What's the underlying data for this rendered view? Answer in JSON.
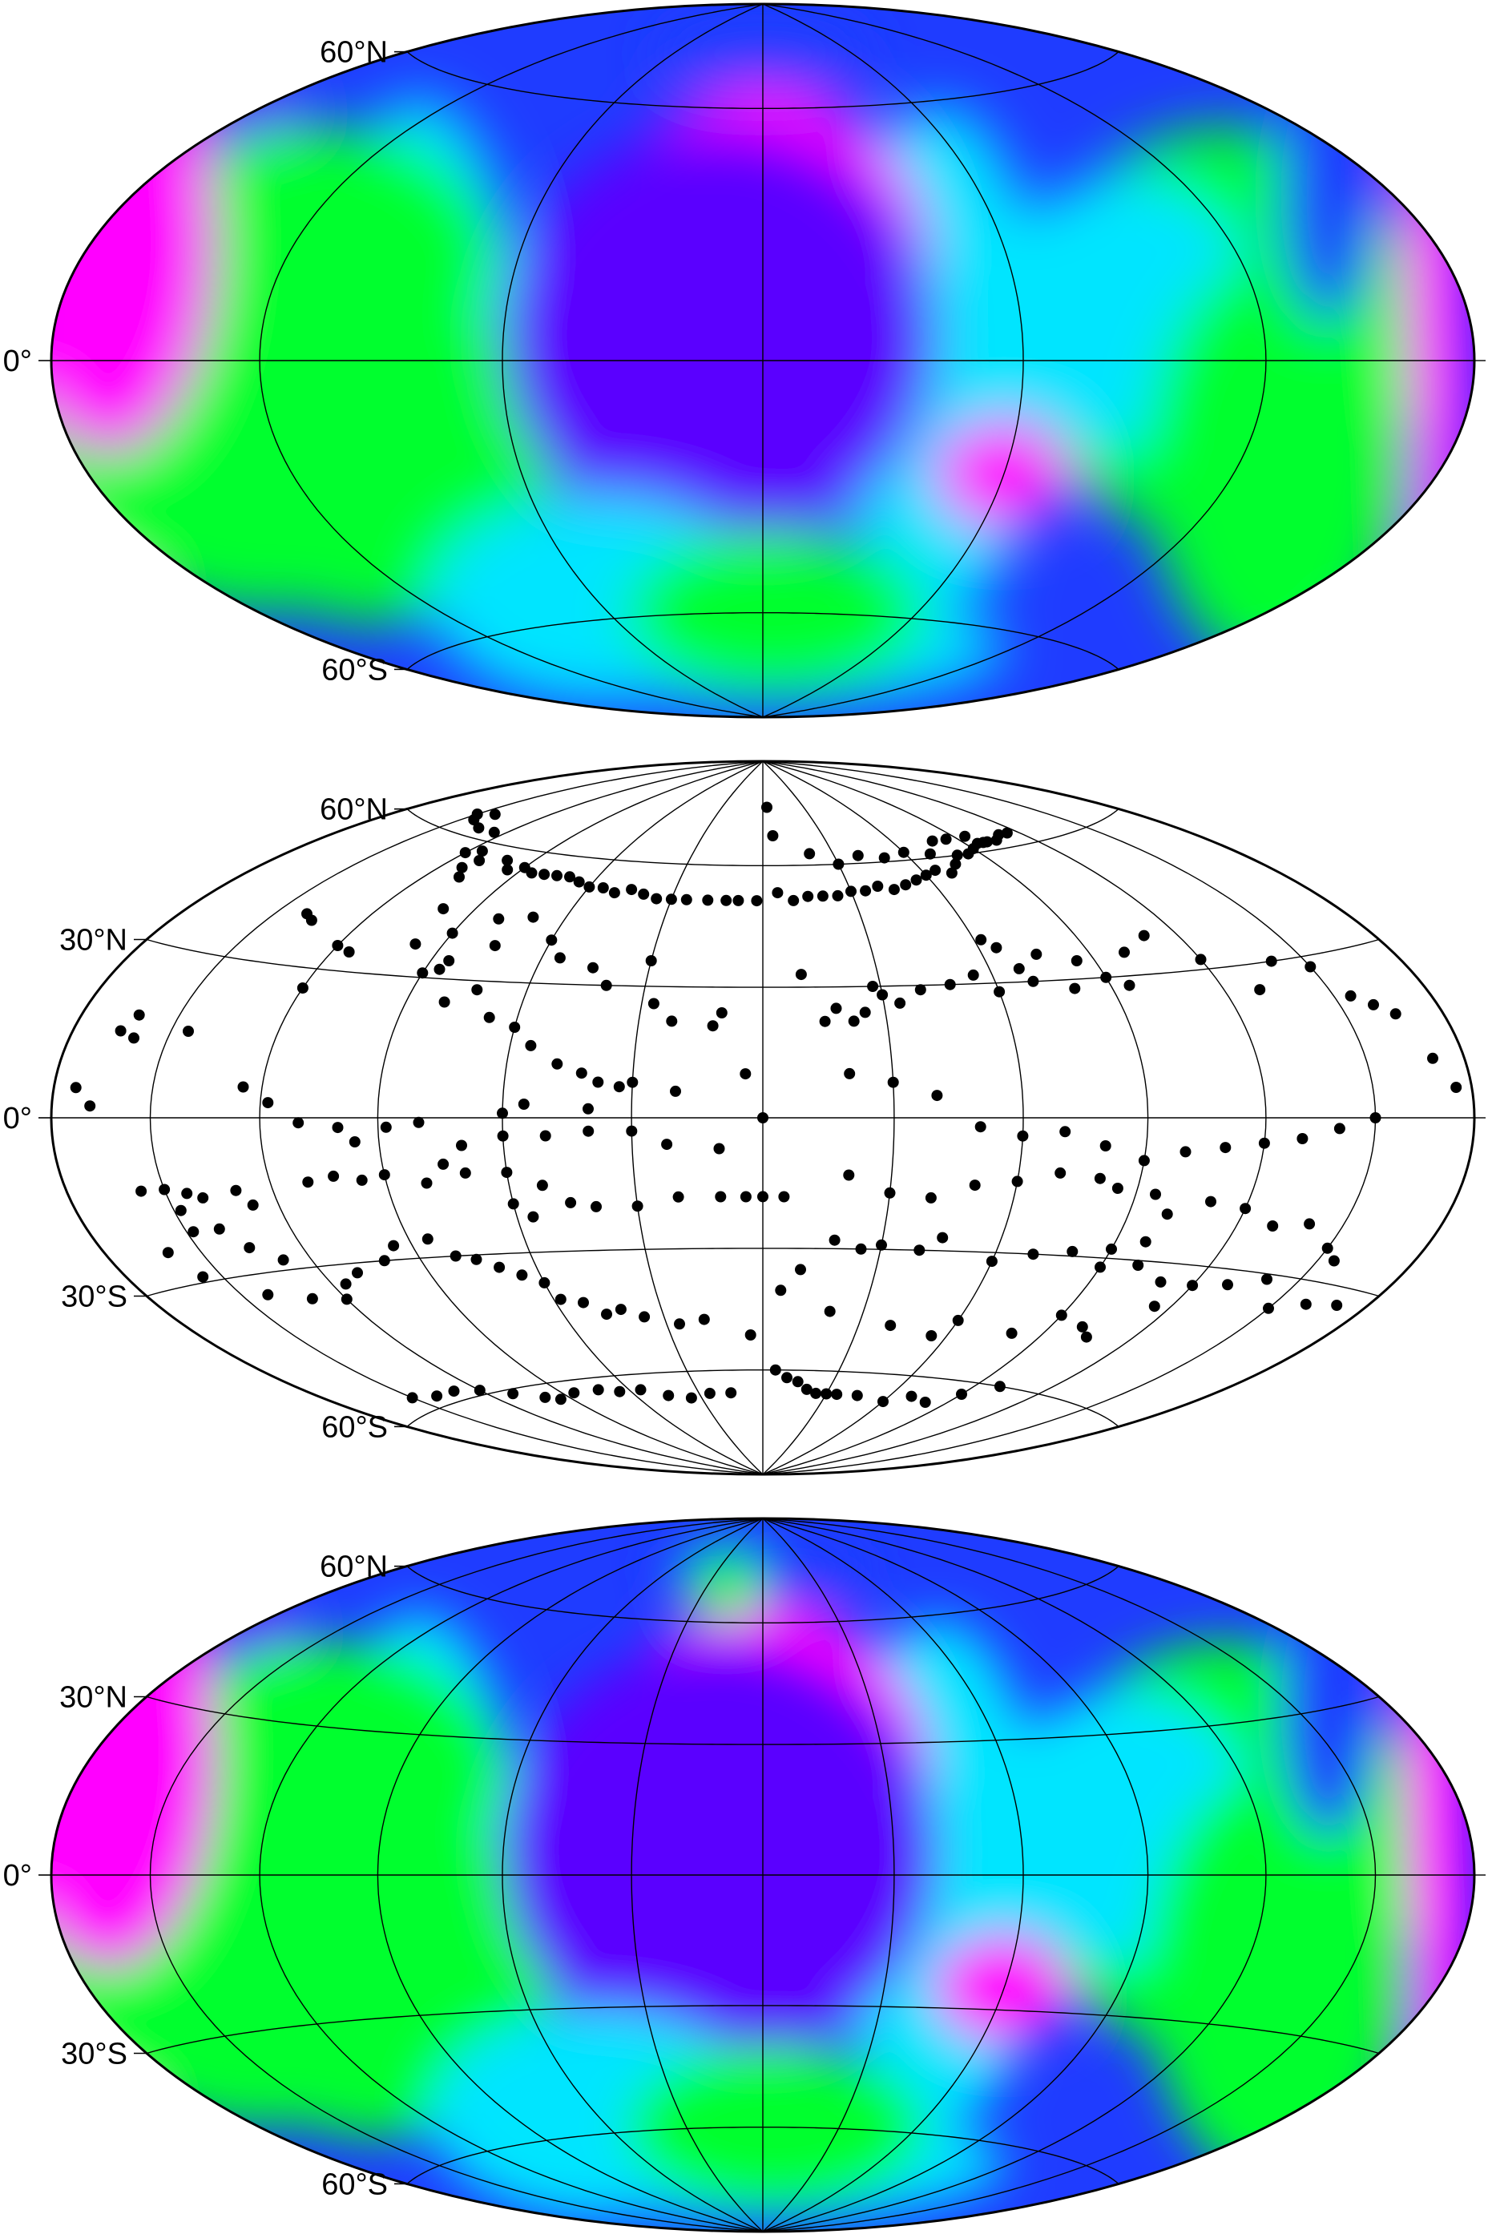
{
  "panels": [
    {
      "id": "grid-top",
      "kind": "field",
      "lat_labels": [
        "60°N",
        "0°",
        "60°S"
      ],
      "meridian_step_deg": 60,
      "parallels_deg": [
        60,
        0,
        -60
      ]
    },
    {
      "id": "points",
      "kind": "points",
      "lat_labels": [
        "60°N",
        "30°N",
        "0°",
        "30°S",
        "60°S"
      ],
      "meridian_step_deg": 30,
      "parallels_deg": [
        60,
        30,
        0,
        -30,
        -60
      ]
    },
    {
      "id": "grid-bottom",
      "kind": "field",
      "lat_labels": [
        "60°N",
        "30°N",
        "0°",
        "30°S",
        "60°S"
      ],
      "meridian_step_deg": 30,
      "parallels_deg": [
        60,
        30,
        0,
        -30,
        -60
      ]
    }
  ],
  "colors": {
    "low": "#ff00ff",
    "mid_low": "#5a00ff",
    "blue": "#1f3cff",
    "cyan": "#00e5ff",
    "green": "#00ff2e",
    "high": "#ff2a00",
    "peak": "#ffffff",
    "point": "#000000"
  },
  "points_lonlat": [
    [
      -173,
      5
    ],
    [
      -168,
      2
    ],
    [
      -165,
      15
    ],
    [
      -162,
      18
    ],
    [
      -160,
      14
    ],
    [
      -145,
      16
    ],
    [
      -157,
      -13
    ],
    [
      -150,
      -13
    ],
    [
      -148,
      -17
    ],
    [
      -144,
      -14
    ],
    [
      -140,
      -15
    ],
    [
      -130,
      -14
    ],
    [
      -127,
      -17
    ],
    [
      -160,
      -24
    ],
    [
      -156,
      -29
    ],
    [
      -148,
      -21
    ],
    [
      -140,
      -21
    ],
    [
      -135,
      -25
    ],
    [
      -128,
      -28
    ],
    [
      -142,
      -34
    ],
    [
      -130,
      -36
    ],
    [
      -120,
      -37
    ],
    [
      -116,
      -34
    ],
    [
      -110,
      -32
    ],
    [
      -100,
      -30
    ],
    [
      -95,
      -27
    ],
    [
      -85,
      -26
    ],
    [
      -140,
      40
    ],
    [
      -136,
      39
    ],
    [
      -120,
      35
    ],
    [
      -115,
      34
    ],
    [
      -98,
      37
    ],
    [
      -90,
      31
    ],
    [
      -86,
      32
    ],
    [
      -80,
      25
    ],
    [
      -73,
      28
    ],
    [
      -67,
      22
    ],
    [
      -60,
      20
    ],
    [
      -55,
      16
    ],
    [
      -48,
      12
    ],
    [
      -42,
      10
    ],
    [
      -38,
      8
    ],
    [
      -33,
      7
    ],
    [
      -27,
      26
    ],
    [
      -22,
      22
    ],
    [
      -12,
      21
    ],
    [
      -4,
      10
    ],
    [
      -120,
      26
    ],
    [
      -125,
      6
    ],
    [
      -118,
      3
    ],
    [
      -110,
      -1
    ],
    [
      -100,
      -2
    ],
    [
      -96,
      -5
    ],
    [
      -88,
      -2
    ],
    [
      -80,
      -1
    ],
    [
      -70,
      -6
    ],
    [
      -60,
      -4
    ],
    [
      -50,
      -4
    ],
    [
      -40,
      -3
    ],
    [
      -30,
      -3
    ],
    [
      -22,
      -6
    ],
    [
      -10,
      -7
    ],
    [
      -110,
      -13
    ],
    [
      -103,
      -12
    ],
    [
      -96,
      -13
    ],
    [
      -90,
      -12
    ],
    [
      -80,
      -14
    ],
    [
      -75,
      -10
    ],
    [
      -70,
      -12
    ],
    [
      -60,
      -12
    ],
    [
      -52,
      -15
    ],
    [
      -46,
      -19
    ],
    [
      -40,
      -20
    ],
    [
      -30,
      -20
    ],
    [
      -20,
      -18
    ],
    [
      -10,
      -18
    ],
    [
      -4,
      -18
    ],
    [
      -80,
      -30
    ],
    [
      -75,
      -31
    ],
    [
      -70,
      -33
    ],
    [
      -65,
      -35
    ],
    [
      -60,
      -37
    ],
    [
      -58,
      -41
    ],
    [
      -52,
      -42
    ],
    [
      -47,
      -45
    ],
    [
      -42,
      -44
    ],
    [
      -36,
      -46
    ],
    [
      -26,
      -48
    ],
    [
      -18,
      -47
    ],
    [
      -4,
      -51
    ],
    [
      -150,
      -57
    ],
    [
      -140,
      -58
    ],
    [
      -130,
      -58
    ],
    [
      -120,
      -59
    ],
    [
      -110,
      -61
    ],
    [
      -100,
      -63
    ],
    [
      -95,
      -64
    ],
    [
      -85,
      -63
    ],
    [
      -73,
      -63
    ],
    [
      -65,
      -64
    ],
    [
      -55,
      -64
    ],
    [
      -45,
      -66
    ],
    [
      -35,
      -67
    ],
    [
      -25,
      -66
    ],
    [
      -15,
      -66
    ],
    [
      -60,
      -19
    ],
    [
      -56,
      -22
    ],
    [
      -150,
      64
    ],
    [
      -145,
      63
    ],
    [
      -143,
      65
    ],
    [
      -135,
      62
    ],
    [
      -125,
      62
    ],
    [
      -120,
      57
    ],
    [
      -115,
      58
    ],
    [
      -112,
      54
    ],
    [
      -110,
      56
    ],
    [
      -108,
      52
    ],
    [
      -100,
      57
    ],
    [
      -95,
      55
    ],
    [
      -90,
      56
    ],
    [
      -85,
      55
    ],
    [
      -80,
      55
    ],
    [
      -75,
      55
    ],
    [
      -70,
      55
    ],
    [
      -65,
      54
    ],
    [
      -60,
      53
    ],
    [
      -55,
      53
    ],
    [
      -50,
      52
    ],
    [
      -45,
      53
    ],
    [
      -40,
      52
    ],
    [
      -35,
      51
    ],
    [
      -30,
      51
    ],
    [
      -25,
      51
    ],
    [
      -18,
      51
    ],
    [
      -12,
      51
    ],
    [
      -8,
      51
    ],
    [
      -2,
      51
    ],
    [
      5,
      53
    ],
    [
      10,
      51
    ],
    [
      15,
      52
    ],
    [
      20,
      52
    ],
    [
      25,
      52
    ],
    [
      30,
      53
    ],
    [
      35,
      53
    ],
    [
      40,
      54
    ],
    [
      45,
      53
    ],
    [
      50,
      54
    ],
    [
      55,
      55
    ],
    [
      60,
      56
    ],
    [
      65,
      57
    ],
    [
      70,
      56
    ],
    [
      75,
      58
    ],
    [
      80,
      60
    ],
    [
      85,
      60
    ],
    [
      90,
      61
    ],
    [
      95,
      62
    ],
    [
      100,
      62
    ],
    [
      105,
      62
    ],
    [
      110,
      63
    ],
    [
      115,
      63
    ],
    [
      3,
      76
    ],
    [
      5,
      68
    ],
    [
      20,
      63
    ],
    [
      30,
      60
    ],
    [
      40,
      62
    ],
    [
      50,
      61
    ],
    [
      60,
      62
    ],
    [
      70,
      61
    ],
    [
      78,
      64
    ],
    [
      85,
      64
    ],
    [
      95,
      64
    ],
    [
      98,
      62
    ],
    [
      -100,
      45
    ],
    [
      -90,
      40
    ],
    [
      -85,
      34
    ],
    [
      -80,
      44
    ],
    [
      -75,
      38
    ],
    [
      -70,
      45
    ],
    [
      -60,
      40
    ],
    [
      -55,
      36
    ],
    [
      -45,
      34
    ],
    [
      -40,
      30
    ],
    [
      -30,
      36
    ],
    [
      -10,
      24
    ],
    [
      10,
      33
    ],
    [
      15,
      22
    ],
    [
      18,
      25
    ],
    [
      22,
      22
    ],
    [
      25,
      24
    ],
    [
      28,
      30
    ],
    [
      30,
      28
    ],
    [
      34,
      26
    ],
    [
      40,
      29
    ],
    [
      48,
      30
    ],
    [
      55,
      32
    ],
    [
      60,
      28
    ],
    [
      62,
      40
    ],
    [
      65,
      38
    ],
    [
      68,
      33
    ],
    [
      70,
      30
    ],
    [
      75,
      36
    ],
    [
      80,
      28
    ],
    [
      85,
      34
    ],
    [
      90,
      30
    ],
    [
      95,
      28
    ],
    [
      100,
      35
    ],
    [
      110,
      38
    ],
    [
      120,
      32
    ],
    [
      130,
      25
    ],
    [
      140,
      30
    ],
    [
      150,
      28
    ],
    [
      155,
      22
    ],
    [
      160,
      20
    ],
    [
      165,
      18
    ],
    [
      170,
      10
    ],
    [
      175,
      5
    ],
    [
      20,
      10
    ],
    [
      30,
      8
    ],
    [
      40,
      5
    ],
    [
      50,
      -2
    ],
    [
      60,
      -4
    ],
    [
      70,
      -3
    ],
    [
      80,
      -6
    ],
    [
      90,
      -9
    ],
    [
      100,
      -7
    ],
    [
      110,
      -6
    ],
    [
      120,
      -5
    ],
    [
      130,
      -4
    ],
    [
      140,
      -2
    ],
    [
      150,
      0
    ],
    [
      -60,
      1
    ],
    [
      -55,
      3
    ],
    [
      -40,
      2
    ],
    [
      -30,
      8
    ],
    [
      -20,
      6
    ],
    [
      0,
      0
    ],
    [
      0,
      -18
    ],
    [
      5,
      -18
    ],
    [
      20,
      -13
    ],
    [
      30,
      -17
    ],
    [
      40,
      -18
    ],
    [
      50,
      -15
    ],
    [
      60,
      -14
    ],
    [
      70,
      -12
    ],
    [
      80,
      -13
    ],
    [
      85,
      -15
    ],
    [
      95,
      -16
    ],
    [
      100,
      -20
    ],
    [
      110,
      -17
    ],
    [
      120,
      -18
    ],
    [
      130,
      -21
    ],
    [
      140,
      -20
    ],
    [
      150,
      -24
    ],
    [
      155,
      -26
    ],
    [
      18,
      -28
    ],
    [
      25,
      -30
    ],
    [
      30,
      -29
    ],
    [
      40,
      -30
    ],
    [
      45,
      -27
    ],
    [
      60,
      -32
    ],
    [
      70,
      -30
    ],
    [
      80,
      -29
    ],
    [
      90,
      -32
    ],
    [
      100,
      -31
    ],
    [
      110,
      -34
    ],
    [
      120,
      -34
    ],
    [
      130,
      -33
    ],
    [
      140,
      -31
    ],
    [
      150,
      -36
    ],
    [
      160,
      -34
    ],
    [
      170,
      -33
    ],
    [
      98,
      -26
    ],
    [
      90,
      -28
    ],
    [
      5,
      -40
    ],
    [
      10,
      -35
    ],
    [
      20,
      -45
    ],
    [
      40,
      -48
    ],
    [
      55,
      -50
    ],
    [
      60,
      -46
    ],
    [
      80,
      -48
    ],
    [
      90,
      -43
    ],
    [
      100,
      -45
    ],
    [
      105,
      -47
    ],
    [
      115,
      -39
    ],
    [
      5,
      -60
    ],
    [
      10,
      -62
    ],
    [
      15,
      -63
    ],
    [
      20,
      -65
    ],
    [
      25,
      -66
    ],
    [
      30,
      -66
    ],
    [
      35,
      -66
    ],
    [
      45,
      -66
    ],
    [
      60,
      -67
    ],
    [
      70,
      -65
    ],
    [
      80,
      -66
    ],
    [
      90,
      -63
    ],
    [
      100,
      -60
    ]
  ],
  "field_blobs_top": [
    [
      -130,
      -5,
      40,
      38,
      "high"
    ],
    [
      -125,
      -3,
      22,
      25,
      "high"
    ],
    [
      -132,
      0,
      10,
      12,
      "high"
    ],
    [
      -120,
      -10,
      60,
      40,
      "green"
    ],
    [
      -110,
      20,
      45,
      30,
      "green"
    ],
    [
      -95,
      -20,
      45,
      35,
      "green"
    ],
    [
      0,
      20,
      40,
      45,
      "low"
    ],
    [
      -5,
      30,
      30,
      30,
      "low"
    ],
    [
      -10,
      5,
      50,
      50,
      "mid_low"
    ],
    [
      60,
      -25,
      18,
      12,
      "low"
    ],
    [
      110,
      5,
      55,
      45,
      "green"
    ],
    [
      85,
      10,
      35,
      30,
      "cyan"
    ],
    [
      130,
      -20,
      40,
      40,
      "green"
    ],
    [
      -60,
      -55,
      60,
      25,
      "cyan"
    ],
    [
      5,
      -60,
      60,
      20,
      "green"
    ],
    [
      -175,
      20,
      35,
      50,
      "low"
    ],
    [
      175,
      20,
      30,
      45,
      "low"
    ],
    [
      160,
      30,
      30,
      30,
      "blue"
    ]
  ],
  "field_blobs_bottom": [
    [
      -130,
      -5,
      40,
      38,
      "high"
    ],
    [
      -124,
      -3,
      18,
      24,
      "high"
    ],
    [
      -129,
      4,
      6,
      10,
      "peak"
    ],
    [
      -120,
      -10,
      60,
      40,
      "green"
    ],
    [
      -108,
      20,
      45,
      30,
      "green"
    ],
    [
      -95,
      -20,
      45,
      35,
      "green"
    ],
    [
      0,
      20,
      40,
      45,
      "low"
    ],
    [
      -5,
      30,
      30,
      30,
      "low"
    ],
    [
      -10,
      5,
      50,
      50,
      "mid_low"
    ],
    [
      60,
      -25,
      18,
      12,
      "low"
    ],
    [
      110,
      5,
      55,
      45,
      "green"
    ],
    [
      85,
      10,
      35,
      30,
      "cyan"
    ],
    [
      130,
      -20,
      40,
      40,
      "green"
    ],
    [
      -60,
      -55,
      60,
      25,
      "cyan"
    ],
    [
      5,
      -60,
      60,
      20,
      "green"
    ],
    [
      -175,
      20,
      35,
      50,
      "low"
    ],
    [
      175,
      20,
      30,
      45,
      "low"
    ],
    [
      160,
      30,
      30,
      30,
      "blue"
    ],
    [
      -20,
      70,
      20,
      10,
      "green"
    ]
  ]
}
